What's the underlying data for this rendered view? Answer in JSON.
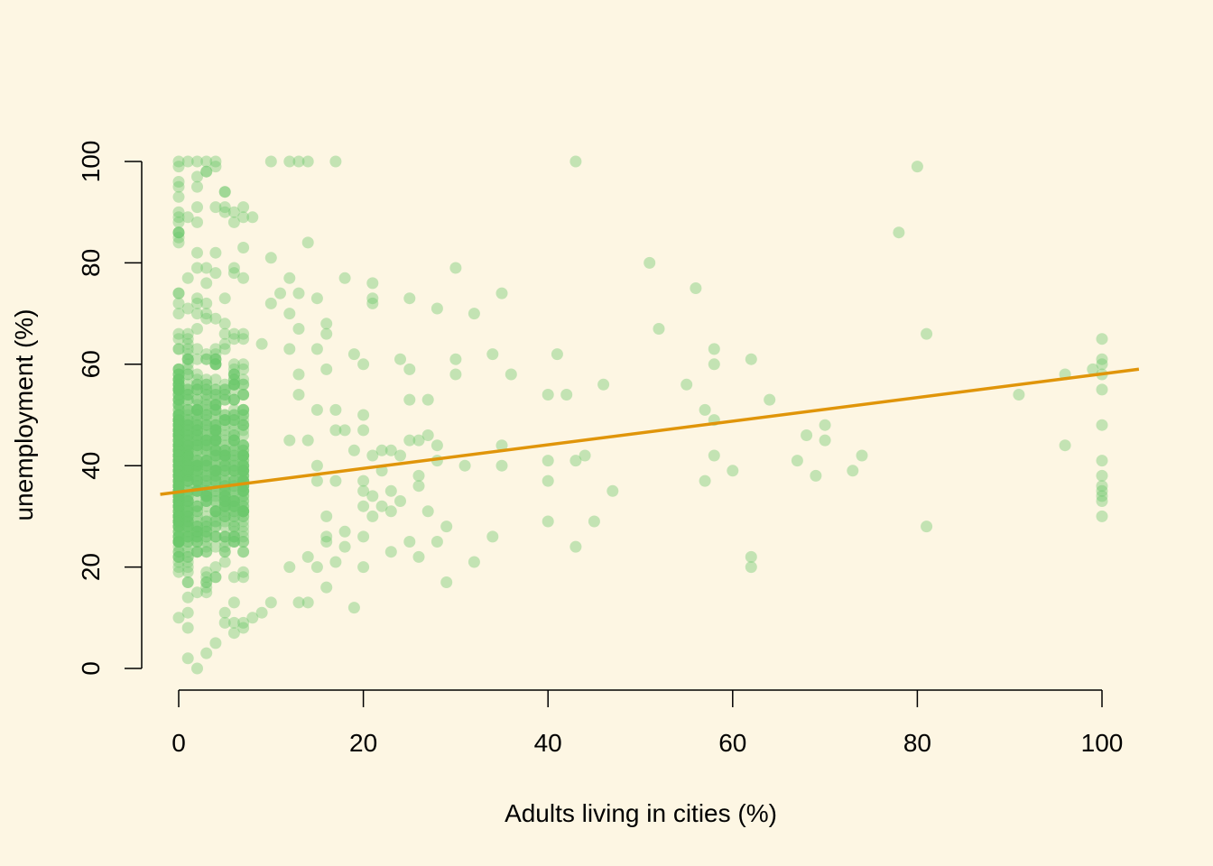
{
  "chart_data": {
    "type": "scatter",
    "title": "",
    "xlabel": "Adults living in cities (%)",
    "ylabel": "unemployment (%)",
    "xlim": [
      0,
      100
    ],
    "ylim": [
      0,
      100
    ],
    "x_ticks": [
      0,
      20,
      40,
      60,
      80,
      100
    ],
    "y_ticks": [
      0,
      20,
      40,
      60,
      80,
      100
    ],
    "x_tick_labels": [
      "0",
      "20",
      "40",
      "60",
      "80",
      "100"
    ],
    "y_tick_labels": [
      "0",
      "20",
      "40",
      "60",
      "80",
      "100"
    ],
    "grid": false,
    "legend": "none",
    "background_color": "#FDF6E3",
    "point_color": "#6CC86C",
    "point_opacity": 0.4,
    "line_color": "#E0950A",
    "fit_line": {
      "intercept": 34.8,
      "slope": 0.233
    },
    "dense_cluster": {
      "x_range": [
        0,
        7
      ],
      "y_range": [
        2,
        100
      ],
      "note": "hundreds of overlapping points"
    },
    "points": [
      [
        0,
        100
      ],
      [
        1,
        100
      ],
      [
        2,
        100
      ],
      [
        3,
        100
      ],
      [
        4,
        100
      ],
      [
        10,
        100
      ],
      [
        12,
        100
      ],
      [
        13,
        100
      ],
      [
        14,
        100
      ],
      [
        17,
        100
      ],
      [
        43,
        100
      ],
      [
        80,
        99
      ],
      [
        5,
        94
      ],
      [
        3,
        98
      ],
      [
        2,
        97
      ],
      [
        6,
        90
      ],
      [
        7,
        89
      ],
      [
        8,
        89
      ],
      [
        4,
        91
      ],
      [
        2,
        95
      ],
      [
        78,
        86
      ],
      [
        14,
        84
      ],
      [
        7,
        83
      ],
      [
        10,
        81
      ],
      [
        51,
        80
      ],
      [
        30,
        79
      ],
      [
        18,
        77
      ],
      [
        21,
        76
      ],
      [
        12,
        77
      ],
      [
        56,
        75
      ],
      [
        35,
        74
      ],
      [
        11,
        74
      ],
      [
        13,
        74
      ],
      [
        15,
        73
      ],
      [
        21,
        73
      ],
      [
        25,
        73
      ],
      [
        28,
        71
      ],
      [
        21,
        72
      ],
      [
        10,
        72
      ],
      [
        12,
        70
      ],
      [
        32,
        70
      ],
      [
        16,
        68
      ],
      [
        52,
        67
      ],
      [
        13,
        67
      ],
      [
        16,
        66
      ],
      [
        81,
        66
      ],
      [
        100,
        65
      ],
      [
        9,
        64
      ],
      [
        15,
        63
      ],
      [
        58,
        63
      ],
      [
        12,
        63
      ],
      [
        41,
        62
      ],
      [
        34,
        62
      ],
      [
        19,
        62
      ],
      [
        100,
        61
      ],
      [
        62,
        61
      ],
      [
        30,
        61
      ],
      [
        24,
        61
      ],
      [
        20,
        60
      ],
      [
        58,
        60
      ],
      [
        100,
        60
      ],
      [
        99,
        59
      ],
      [
        25,
        59
      ],
      [
        16,
        59
      ],
      [
        13,
        58
      ],
      [
        36,
        58
      ],
      [
        30,
        58
      ],
      [
        96,
        58
      ],
      [
        100,
        58
      ],
      [
        55,
        56
      ],
      [
        46,
        56
      ],
      [
        100,
        55
      ],
      [
        40,
        54
      ],
      [
        42,
        54
      ],
      [
        91,
        54
      ],
      [
        13,
        54
      ],
      [
        25,
        53
      ],
      [
        27,
        53
      ],
      [
        64,
        53
      ],
      [
        57,
        51
      ],
      [
        15,
        51
      ],
      [
        17,
        51
      ],
      [
        20,
        50
      ],
      [
        58,
        49
      ],
      [
        20,
        47
      ],
      [
        17,
        47
      ],
      [
        18,
        47
      ],
      [
        100,
        48
      ],
      [
        70,
        48
      ],
      [
        27,
        46
      ],
      [
        68,
        46
      ],
      [
        25,
        45
      ],
      [
        26,
        45
      ],
      [
        70,
        45
      ],
      [
        12,
        45
      ],
      [
        14,
        45
      ],
      [
        96,
        44
      ],
      [
        28,
        44
      ],
      [
        35,
        44
      ],
      [
        19,
        43
      ],
      [
        22,
        43
      ],
      [
        23,
        43
      ],
      [
        24,
        42
      ],
      [
        58,
        42
      ],
      [
        74,
        42
      ],
      [
        44,
        42
      ],
      [
        21,
        42
      ],
      [
        40,
        41
      ],
      [
        43,
        41
      ],
      [
        67,
        41
      ],
      [
        100,
        41
      ],
      [
        28,
        41
      ],
      [
        31,
        40
      ],
      [
        35,
        40
      ],
      [
        15,
        40
      ],
      [
        22,
        39
      ],
      [
        60,
        39
      ],
      [
        73,
        39
      ],
      [
        26,
        38
      ],
      [
        69,
        38
      ],
      [
        100,
        38
      ],
      [
        20,
        37
      ],
      [
        40,
        37
      ],
      [
        57,
        37
      ],
      [
        15,
        37
      ],
      [
        17,
        37
      ],
      [
        100,
        36
      ],
      [
        26,
        36
      ],
      [
        23,
        35
      ],
      [
        47,
        35
      ],
      [
        20,
        35
      ],
      [
        100,
        35
      ],
      [
        21,
        34
      ],
      [
        100,
        34
      ],
      [
        24,
        33
      ],
      [
        100,
        33
      ],
      [
        20,
        32
      ],
      [
        22,
        32
      ],
      [
        23,
        31
      ],
      [
        27,
        31
      ],
      [
        21,
        30
      ],
      [
        100,
        30
      ],
      [
        16,
        30
      ],
      [
        40,
        29
      ],
      [
        45,
        29
      ],
      [
        29,
        28
      ],
      [
        81,
        28
      ],
      [
        18,
        27
      ],
      [
        20,
        26
      ],
      [
        34,
        26
      ],
      [
        16,
        26
      ],
      [
        25,
        25
      ],
      [
        28,
        25
      ],
      [
        16,
        25
      ],
      [
        18,
        24
      ],
      [
        43,
        24
      ],
      [
        23,
        23
      ],
      [
        26,
        22
      ],
      [
        62,
        22
      ],
      [
        14,
        22
      ],
      [
        32,
        21
      ],
      [
        17,
        21
      ],
      [
        15,
        20
      ],
      [
        20,
        20
      ],
      [
        62,
        20
      ],
      [
        12,
        20
      ],
      [
        29,
        17
      ],
      [
        16,
        16
      ],
      [
        13,
        13
      ],
      [
        14,
        13
      ],
      [
        19,
        12
      ],
      [
        9,
        11
      ],
      [
        10,
        13
      ],
      [
        6,
        7
      ],
      [
        4,
        5
      ],
      [
        3,
        3
      ],
      [
        1,
        2
      ],
      [
        2,
        0
      ],
      [
        7,
        8
      ],
      [
        8,
        10
      ],
      [
        5,
        11
      ],
      [
        6,
        9
      ]
    ]
  }
}
